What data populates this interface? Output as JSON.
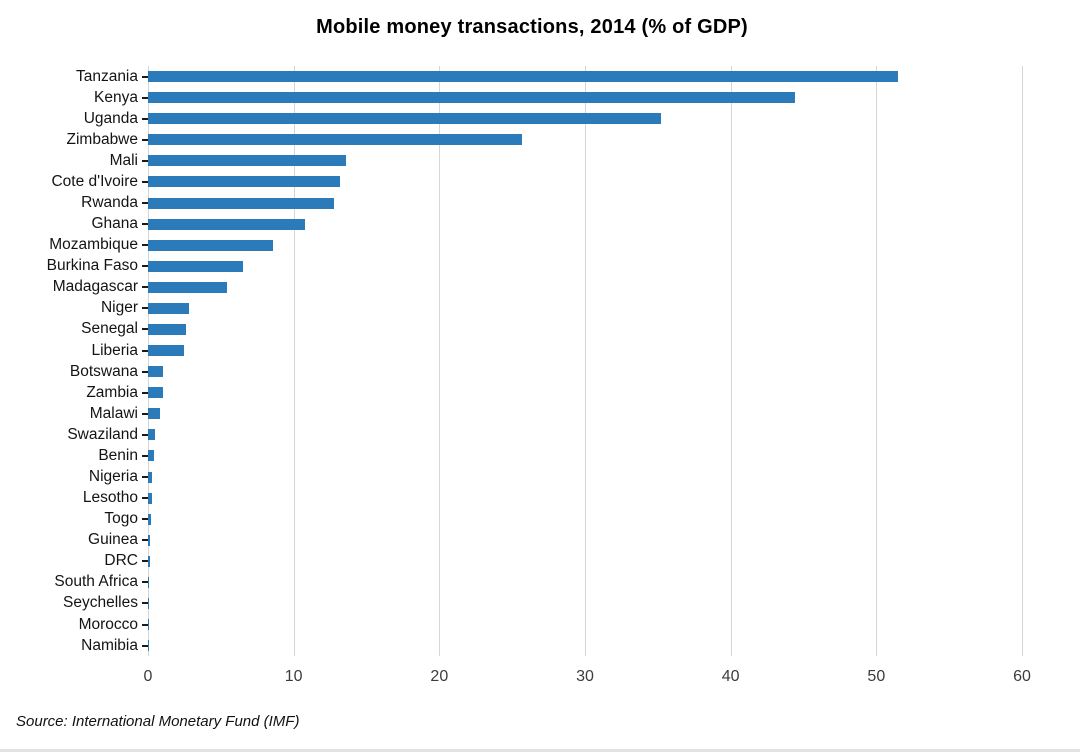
{
  "chart_data": {
    "type": "bar",
    "orientation": "horizontal",
    "title": "Mobile money transactions, 2014 (% of GDP)",
    "xlabel": "",
    "ylabel": "",
    "xlim": [
      0,
      60
    ],
    "xticks": [
      0,
      10,
      20,
      30,
      40,
      50,
      60
    ],
    "grid": "vertical",
    "bar_color": "#2b7bba",
    "categories": [
      "Tanzania",
      "Kenya",
      "Uganda",
      "Zimbabwe",
      "Mali",
      "Cote d'Ivoire",
      "Rwanda",
      "Ghana",
      "Mozambique",
      "Burkina Faso",
      "Madagascar",
      "Niger",
      "Senegal",
      "Liberia",
      "Botswana",
      "Zambia",
      "Malawi",
      "Swaziland",
      "Benin",
      "Nigeria",
      "Lesotho",
      "Togo",
      "Guinea",
      "DRC",
      "South Africa",
      "Seychelles",
      "Morocco",
      "Namibia"
    ],
    "values": [
      51.5,
      44.4,
      35.2,
      25.7,
      13.6,
      13.2,
      12.8,
      10.8,
      8.6,
      6.5,
      5.4,
      2.8,
      2.6,
      2.5,
      1.0,
      1.0,
      0.8,
      0.5,
      0.4,
      0.3,
      0.25,
      0.2,
      0.15,
      0.15,
      0.1,
      0.1,
      0.06,
      0.05
    ],
    "source": "Source: International Monetary Fund (IMF)"
  }
}
